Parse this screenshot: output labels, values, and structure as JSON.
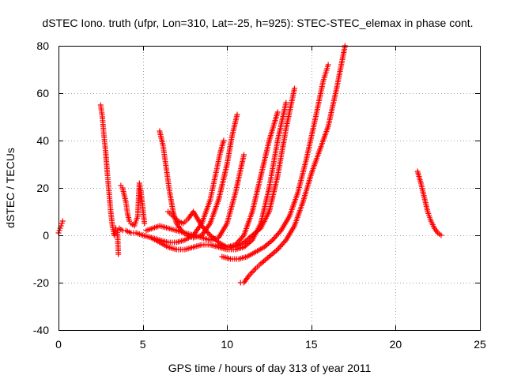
{
  "chart_data": {
    "type": "scatter",
    "title": "dSTEC Iono. truth (ufpr, Lon=310, Lat=-25, h=925): STEC-STEC_elemax in phase cont.",
    "xlabel": "GPS time / hours of day 313 of year 2011",
    "ylabel": "dSTEC  / TECUs",
    "xlim": [
      0,
      25
    ],
    "ylim": [
      -40,
      80
    ],
    "xticks": [
      0,
      5,
      10,
      15,
      20,
      25
    ],
    "yticks": [
      -40,
      -20,
      0,
      20,
      40,
      60,
      80
    ],
    "grid": true,
    "marker": "plus",
    "color": "#ff0000",
    "series": [
      {
        "x": [
          0.0,
          0.1,
          0.2,
          0.25
        ],
        "y": [
          1,
          3,
          5,
          6
        ]
      },
      {
        "x": [
          2.5,
          2.6,
          2.7,
          2.8,
          2.9,
          3.0,
          3.1,
          3.2,
          3.3,
          3.4,
          3.5,
          3.55
        ],
        "y": [
          55,
          50,
          42,
          35,
          26,
          18,
          10,
          4,
          0,
          3,
          2,
          -8
        ]
      },
      {
        "x": [
          3.7,
          3.8,
          3.9,
          4.0,
          4.1,
          4.2,
          4.3,
          4.5,
          4.7,
          4.8,
          4.9,
          5.1
        ],
        "y": [
          21,
          20,
          17,
          14,
          9,
          6,
          5,
          4,
          8,
          22,
          18,
          5
        ]
      },
      {
        "x": [
          3.6,
          3.8,
          4.0,
          4.3,
          4.6,
          5.0,
          5.5,
          6.0,
          6.5,
          7.0,
          7.5,
          8.0,
          8.5,
          9.0,
          9.3,
          9.6,
          9.8
        ],
        "y": [
          3,
          2,
          2,
          1,
          1,
          0,
          -1,
          -2,
          -3,
          -3,
          -2,
          0,
          5,
          15,
          25,
          35,
          40
        ]
      },
      {
        "x": [
          6.0,
          6.2,
          6.4,
          6.6,
          6.8,
          7.0,
          7.3,
          7.6,
          8.0,
          8.5,
          9.0,
          9.5,
          10.0,
          10.3,
          10.6
        ],
        "y": [
          44,
          38,
          28,
          18,
          10,
          5,
          2,
          0,
          -1,
          0,
          5,
          15,
          30,
          42,
          51
        ]
      },
      {
        "x": [
          5.2,
          5.6,
          6.0,
          6.5,
          7.0,
          7.5,
          8.0,
          8.5,
          9.0,
          9.5,
          10.0,
          10.5,
          11.0
        ],
        "y": [
          2,
          3,
          4,
          3,
          2,
          1,
          0,
          -1,
          -2,
          -1,
          5,
          18,
          34
        ]
      },
      {
        "x": [
          6.5,
          6.8,
          7.1,
          7.4,
          7.7,
          8.0,
          8.5,
          9.0,
          9.5,
          10.0,
          10.5,
          11.0,
          11.5,
          12.0,
          12.5,
          13.0
        ],
        "y": [
          10,
          8,
          6,
          5,
          7,
          10,
          4,
          0,
          -3,
          -5,
          -4,
          0,
          10,
          25,
          40,
          52
        ]
      },
      {
        "x": [
          5.5,
          6.0,
          6.5,
          7.0,
          7.5,
          8.0,
          8.5,
          9.0,
          9.5,
          10.0,
          10.5,
          11.0,
          11.5,
          12.0,
          12.5,
          13.0,
          13.5
        ],
        "y": [
          -1,
          -3,
          -5,
          -6,
          -6,
          -5,
          -4,
          -4,
          -5,
          -6,
          -6,
          -5,
          -2,
          5,
          20,
          40,
          56
        ]
      },
      {
        "x": [
          9.5,
          10.0,
          10.5,
          11.0,
          11.5,
          12.0,
          12.5,
          13.0,
          13.5,
          14.0
        ],
        "y": [
          -4,
          -5,
          -5,
          -3,
          0,
          3,
          10,
          25,
          45,
          62
        ]
      },
      {
        "x": [
          9.7,
          10.2,
          10.7,
          11.2,
          11.7,
          12.2,
          12.7,
          13.2,
          13.7,
          14.2,
          14.7,
          15.2,
          15.7,
          16.0
        ],
        "y": [
          -9,
          -10,
          -10,
          -9,
          -7,
          -5,
          -2,
          2,
          8,
          18,
          32,
          48,
          65,
          72
        ]
      },
      {
        "x": [
          10.8,
          11.0,
          11.3,
          11.7,
          12.0,
          12.5,
          13.0,
          13.5,
          14.0,
          14.5,
          15.0,
          15.5,
          16.0,
          16.5,
          17.0
        ],
        "y": [
          -20,
          -20,
          -17,
          -14,
          -12,
          -9,
          -6,
          -2,
          4,
          14,
          26,
          36,
          46,
          62,
          80
        ]
      },
      {
        "x": [
          21.3,
          21.5,
          21.7,
          21.9,
          22.1,
          22.3,
          22.5,
          22.7
        ],
        "y": [
          27,
          22,
          16,
          10,
          6,
          3,
          1,
          0
        ]
      }
    ]
  }
}
